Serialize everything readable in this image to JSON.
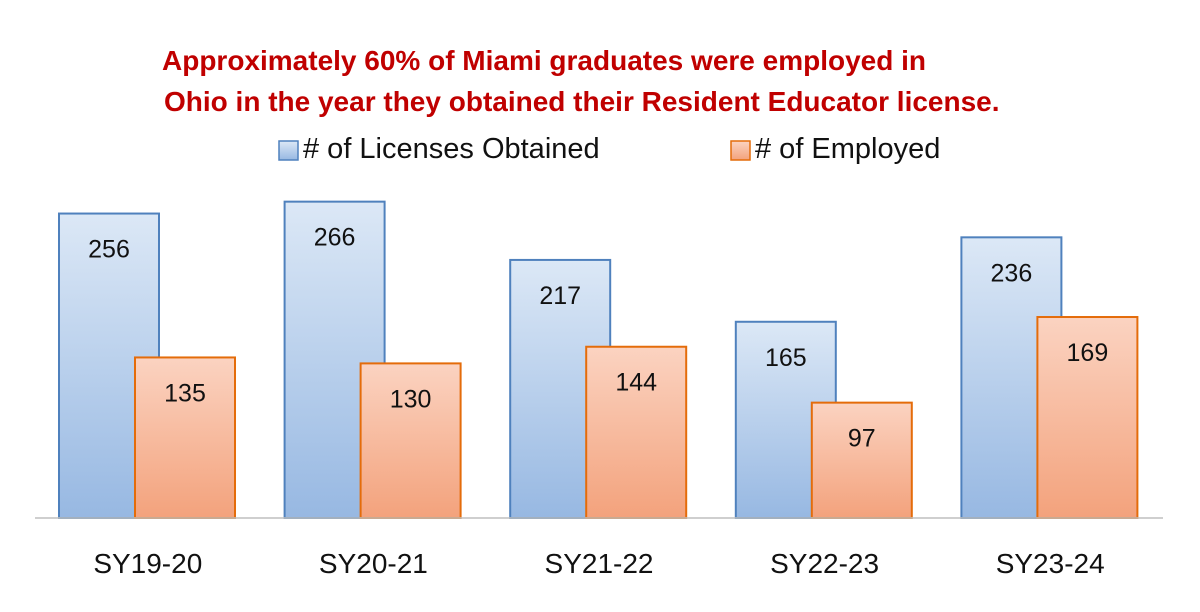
{
  "chart_data": {
    "type": "bar",
    "title_lines": [
      "Approximately 60% of Miami graduates were employed in",
      "Ohio in the year they obtained their Resident Educator license."
    ],
    "categories": [
      "SY19-20",
      "SY20-21",
      "SY21-22",
      "SY22-23",
      "SY23-24"
    ],
    "series": [
      {
        "name": "# of Licenses Obtained",
        "values": [
          256,
          266,
          217,
          165,
          236
        ]
      },
      {
        "name": "# of Employed",
        "values": [
          135,
          130,
          144,
          97,
          169
        ]
      }
    ],
    "data_labels": true,
    "legend_position": "top",
    "grid": false,
    "ylim": [
      0,
      280
    ]
  },
  "colors": {
    "title": "#c00000",
    "series_1_fill_top": "#dce8f6",
    "series_1_fill_bottom": "#97b8e2",
    "series_1_stroke": "#4f81bd",
    "series_2_fill_top": "#fbd3c1",
    "series_2_fill_bottom": "#f3a27c",
    "series_2_stroke": "#e46c0a",
    "axis": "#bfbfbf"
  }
}
